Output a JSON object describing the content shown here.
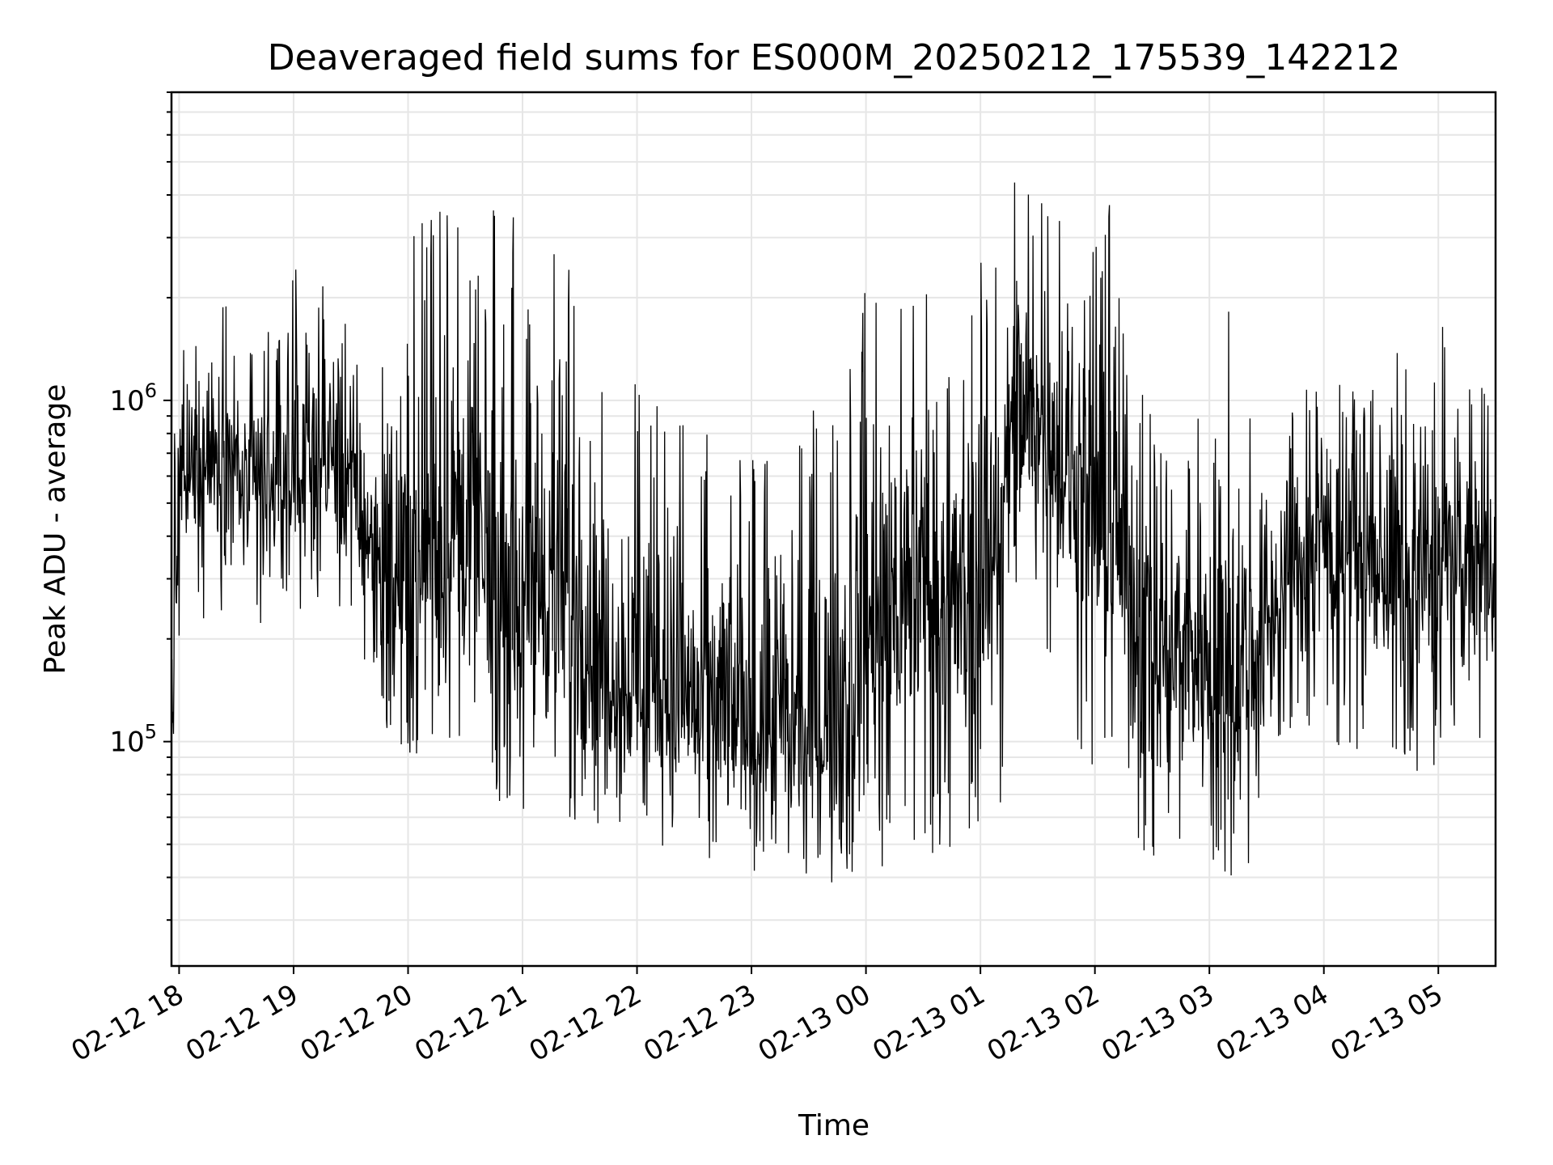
{
  "chart_data": {
    "type": "line",
    "title": "Deaveraged field sums for ES000M_20250212_175539_142212",
    "xlabel": "Time",
    "ylabel": "Peak ADU - average",
    "y_scale": "log",
    "ylim": [
      22000,
      8000000
    ],
    "xlim": [
      "2025-02-12 17:56",
      "2025-02-13 05:30"
    ],
    "grid": true,
    "x_ticks": [
      "02-12 18",
      "02-12 19",
      "02-12 20",
      "02-12 21",
      "02-12 22",
      "02-12 23",
      "02-13 00",
      "02-13 01",
      "02-13 02",
      "02-13 03",
      "02-13 04",
      "02-13 05"
    ],
    "y_ticks": [
      {
        "value": 100000,
        "base": "10",
        "exp": "5"
      },
      {
        "value": 1000000,
        "base": "10",
        "exp": "6"
      }
    ],
    "series": [
      {
        "color": "#000000",
        "x": [
          "2025-02-12 17:56",
          "2025-02-12 18:00",
          "2025-02-12 18:10",
          "2025-02-12 18:20",
          "2025-02-12 18:30",
          "2025-02-12 18:40",
          "2025-02-12 18:50",
          "2025-02-12 19:00",
          "2025-02-12 19:10",
          "2025-02-12 19:20",
          "2025-02-12 19:30",
          "2025-02-12 19:40",
          "2025-02-12 19:50",
          "2025-02-12 20:00",
          "2025-02-12 20:10",
          "2025-02-12 20:20",
          "2025-02-12 20:30",
          "2025-02-12 20:40",
          "2025-02-12 20:50",
          "2025-02-12 21:00",
          "2025-02-12 21:10",
          "2025-02-12 21:20",
          "2025-02-12 21:30",
          "2025-02-12 21:40",
          "2025-02-12 21:50",
          "2025-02-12 22:00",
          "2025-02-12 22:10",
          "2025-02-12 22:20",
          "2025-02-12 22:30",
          "2025-02-12 22:40",
          "2025-02-12 22:50",
          "2025-02-12 23:00",
          "2025-02-12 23:10",
          "2025-02-12 23:20",
          "2025-02-12 23:30",
          "2025-02-12 23:40",
          "2025-02-12 23:50",
          "2025-02-13 00:00",
          "2025-02-13 00:10",
          "2025-02-13 00:20",
          "2025-02-13 00:30",
          "2025-02-13 00:40",
          "2025-02-13 00:50",
          "2025-02-13 01:00",
          "2025-02-13 01:10",
          "2025-02-13 01:20",
          "2025-02-13 01:30",
          "2025-02-13 01:40",
          "2025-02-13 01:50",
          "2025-02-13 02:00",
          "2025-02-13 02:10",
          "2025-02-13 02:20",
          "2025-02-13 02:30",
          "2025-02-13 02:40",
          "2025-02-13 02:50",
          "2025-02-13 03:00",
          "2025-02-13 03:10",
          "2025-02-13 03:20",
          "2025-02-13 03:30",
          "2025-02-13 03:40",
          "2025-02-13 03:50",
          "2025-02-13 04:00",
          "2025-02-13 04:10",
          "2025-02-13 04:20",
          "2025-02-13 04:30",
          "2025-02-13 04:40",
          "2025-02-13 04:50",
          "2025-02-13 05:00",
          "2025-02-13 05:10",
          "2025-02-13 05:20",
          "2025-02-13 05:30"
        ],
        "y": [
          100000,
          500000,
          650000,
          700000,
          600000,
          500000,
          550000,
          600000,
          650000,
          700000,
          550000,
          400000,
          320000,
          300000,
          320000,
          400000,
          380000,
          300000,
          250000,
          260000,
          280000,
          250000,
          200000,
          180000,
          160000,
          150000,
          140000,
          130000,
          120000,
          115000,
          110000,
          110000,
          105000,
          100000,
          95000,
          110000,
          150000,
          200000,
          220000,
          260000,
          300000,
          280000,
          250000,
          300000,
          400000,
          800000,
          900000,
          700000,
          550000,
          450000,
          500000,
          250000,
          200000,
          180000,
          200000,
          150000,
          140000,
          160000,
          220000,
          300000,
          350000,
          400000,
          380000,
          350000,
          320000,
          300000,
          280000,
          300000,
          320000,
          350000,
          320000
        ],
        "y_low": [
          65000,
          200000,
          220000,
          230000,
          220000,
          210000,
          220000,
          230000,
          240000,
          250000,
          200000,
          150000,
          100000,
          90000,
          95000,
          100000,
          90000,
          70000,
          60000,
          60000,
          65000,
          60000,
          55000,
          55000,
          55000,
          52000,
          50000,
          48000,
          46000,
          45000,
          42000,
          42000,
          40000,
          38000,
          32000,
          35000,
          35000,
          40000,
          42000,
          45000,
          48000,
          45000,
          42000,
          50000,
          60000,
          150000,
          200000,
          150000,
          100000,
          80000,
          60000,
          45000,
          42000,
          40000,
          48000,
          45000,
          40000,
          42000,
          60000,
          80000,
          90000,
          100000,
          95000,
          90000,
          85000,
          80000,
          75000,
          80000,
          90000,
          100000,
          110000
        ],
        "y_high": [
          800000,
          1500000,
          1800000,
          2000000,
          1800000,
          1700000,
          1700000,
          2500000,
          2800000,
          2500000,
          1800000,
          1600000,
          1800000,
          3200000,
          3500000,
          3800000,
          4500000,
          4000000,
          3500000,
          5000000,
          4000000,
          3500000,
          3000000,
          1600000,
          1500000,
          1200000,
          1100000,
          1000000,
          900000,
          850000,
          800000,
          900000,
          1000000,
          1200000,
          1000000,
          900000,
          1200000,
          2500000,
          3000000,
          3500000,
          2500000,
          1500000,
          1500000,
          2500000,
          4000000,
          5000000,
          4500000,
          4000000,
          3500000,
          3000000,
          6000000,
          1200000,
          900000,
          800000,
          1000000,
          2200000,
          2000000,
          1200000,
          1000000,
          1000000,
          1100000,
          1100000,
          1200000,
          1100000,
          1200000,
          1500000,
          2000000,
          1800000,
          1500000,
          1200000,
          1100000
        ]
      }
    ]
  }
}
